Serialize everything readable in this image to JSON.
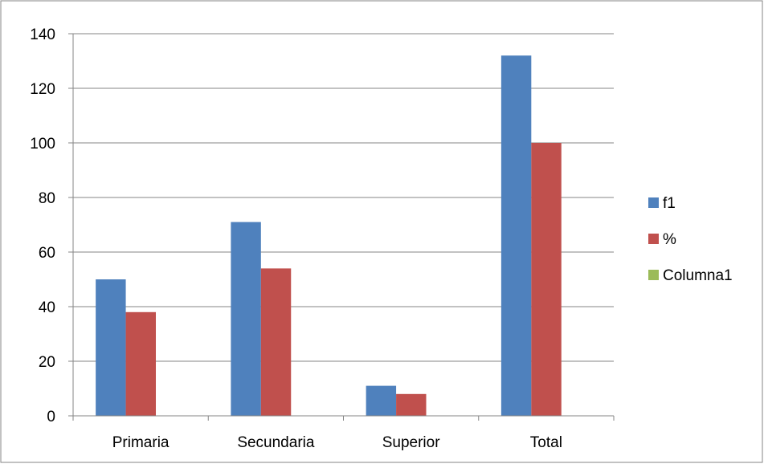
{
  "chart_data": {
    "type": "bar",
    "categories": [
      "Primaria",
      "Secundaria",
      "Superior",
      "Total"
    ],
    "series": [
      {
        "name": "f1",
        "color": "#4F81BD",
        "values": [
          50,
          71,
          11,
          132
        ]
      },
      {
        "name": "%",
        "color": "#C0504D",
        "values": [
          38,
          54,
          8,
          100
        ]
      },
      {
        "name": "Columna1",
        "color": "#9BBB59",
        "values": [
          null,
          null,
          null,
          null
        ]
      }
    ],
    "ylim": [
      0,
      140
    ],
    "yticks": [
      0,
      20,
      40,
      60,
      80,
      100,
      120,
      140
    ],
    "grid": true,
    "legend": "right"
  }
}
